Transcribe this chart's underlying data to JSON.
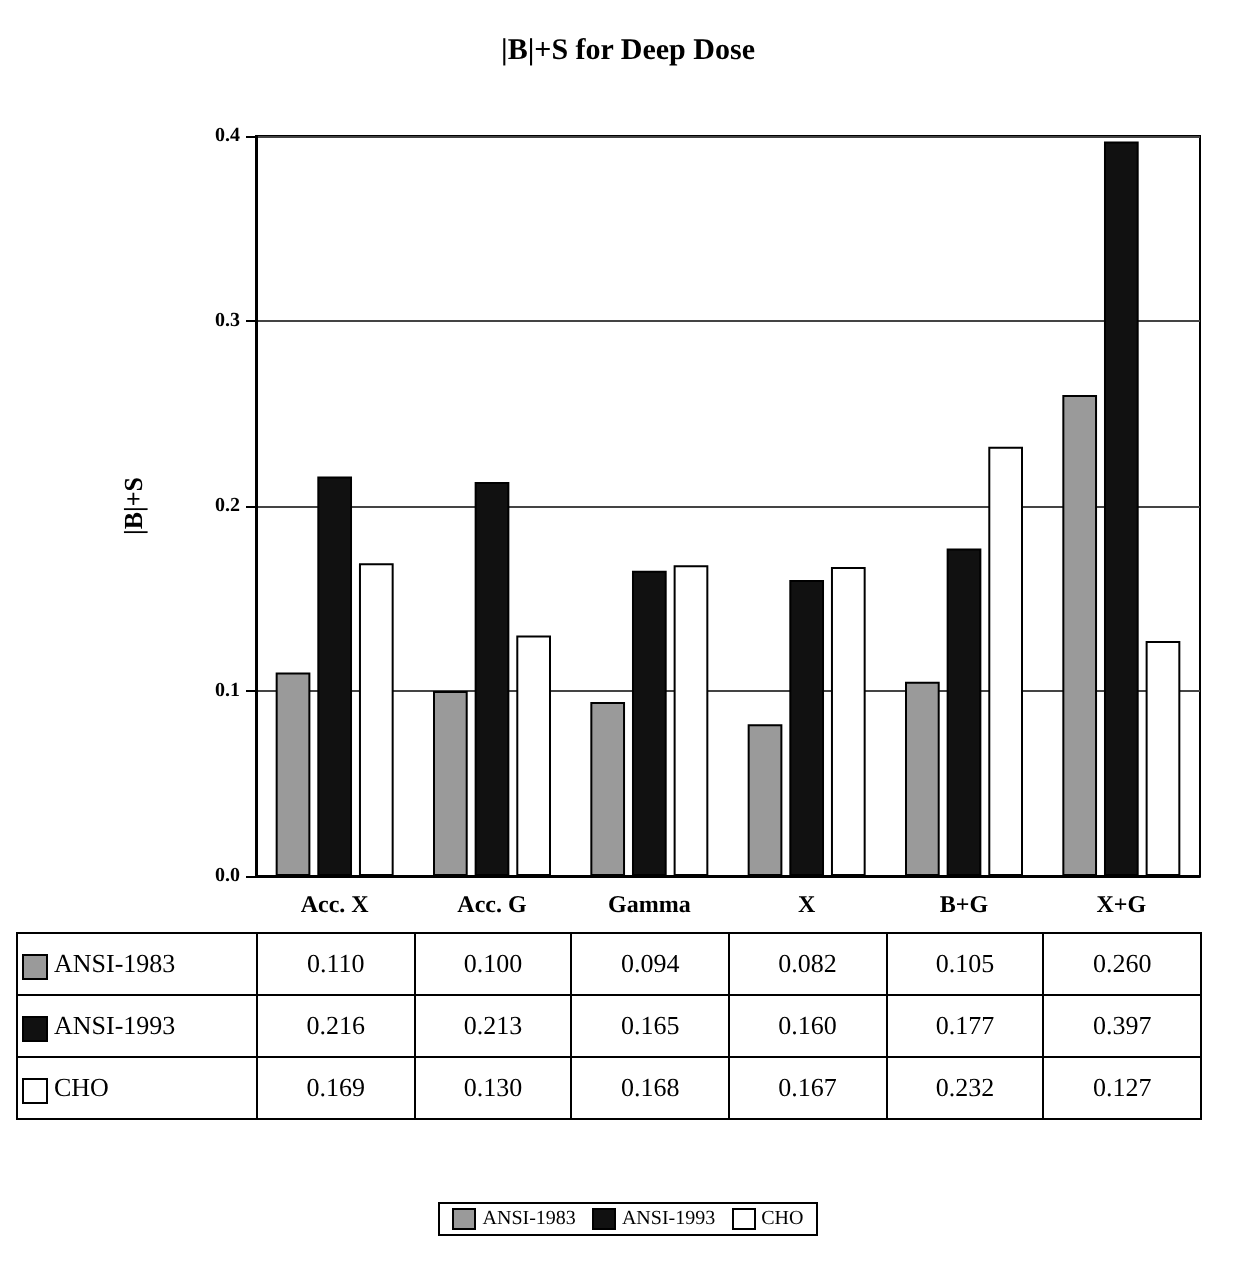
{
  "chart_data": {
    "type": "bar",
    "title": "|B|+S for Deep Dose",
    "ylabel": "|B|+S",
    "categories": [
      "Acc. X",
      "Acc. G",
      "Gamma",
      "X",
      "B+G",
      "X+G"
    ],
    "series": [
      {
        "name": "ANSI-1983",
        "color": "#9a9a9a",
        "values": [
          0.11,
          0.1,
          0.094,
          0.082,
          0.105,
          0.26
        ],
        "value_labels": [
          "0.110",
          "0.100",
          "0.094",
          "0.082",
          "0.105",
          "0.260"
        ]
      },
      {
        "name": "ANSI-1993",
        "color": "#111111",
        "values": [
          0.216,
          0.213,
          0.165,
          0.16,
          0.177,
          0.397
        ],
        "value_labels": [
          "0.216",
          "0.213",
          "0.165",
          "0.160",
          "0.177",
          "0.397"
        ]
      },
      {
        "name": "CHO",
        "color": "#ffffff",
        "values": [
          0.169,
          0.13,
          0.168,
          0.167,
          0.232,
          0.127
        ],
        "value_labels": [
          "0.169",
          "0.130",
          "0.168",
          "0.167",
          "0.232",
          "0.127"
        ]
      }
    ],
    "ylim": [
      0,
      0.4
    ],
    "yticks": [
      {
        "value": 0,
        "label": "0.0"
      },
      {
        "value": 0.1,
        "label": "0.1"
      },
      {
        "value": 0.2,
        "label": "0.2"
      },
      {
        "value": 0.3,
        "label": "0.3"
      },
      {
        "value": 0.4,
        "label": "0.4"
      }
    ],
    "grid": "y",
    "legend": "bottom"
  }
}
